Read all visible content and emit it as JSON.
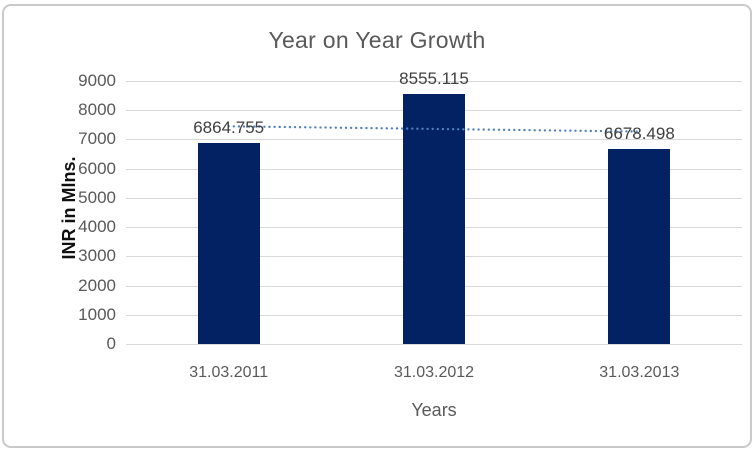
{
  "window": {
    "background": "#ffffff",
    "frame_border_color": "#c9c9c9"
  },
  "chart_data": {
    "type": "bar",
    "title": "Year on Year Growth",
    "categories": [
      "31.03.2011",
      "31.03.2012",
      "31.03.2013"
    ],
    "values": [
      6864.755,
      8555.115,
      6678.498
    ],
    "data_labels": [
      "6864.755",
      "8555.115",
      "6678.498"
    ],
    "xlabel": "Years",
    "ylabel": "INR in Mlns.",
    "ylim": [
      0,
      9000
    ],
    "ytick_interval": 1000,
    "ytick_labels": [
      "0",
      "1000",
      "2000",
      "3000",
      "4000",
      "5000",
      "6000",
      "7000",
      "8000",
      "9000"
    ],
    "grid": true,
    "legend": "none",
    "bar_color": "#032264",
    "gridline_color": "#d9d9d9",
    "axis_text_color": "#595959",
    "data_label_color": "#3f3f3f",
    "title_color": "#595959",
    "trendline": {
      "type": "linear",
      "style": "dotted",
      "color": "#4f81bd",
      "start_value": 7450,
      "end_value": 7270
    }
  }
}
